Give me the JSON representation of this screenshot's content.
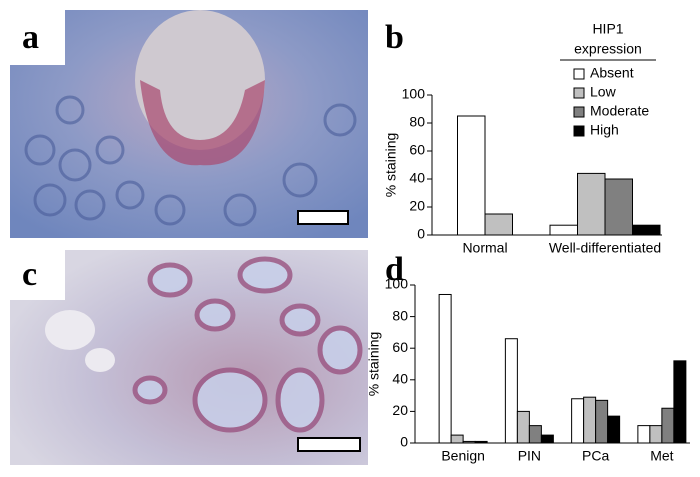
{
  "panels": [
    {
      "label": "a"
    },
    {
      "label": "c"
    }
  ],
  "chart_data": [
    {
      "type": "bar",
      "panel_label": "b",
      "ylabel": "% staining",
      "legend_title": [
        "HIP1",
        "expression"
      ],
      "categories": [
        "Normal",
        "Well-differentiated"
      ],
      "series": [
        {
          "name": "Absent",
          "color": "#ffffff",
          "values": [
            85,
            7
          ]
        },
        {
          "name": "Low",
          "color": "#c0c0c0",
          "values": [
            15,
            44
          ]
        },
        {
          "name": "Moderate",
          "color": "#808080",
          "values": [
            null,
            40
          ]
        },
        {
          "name": "High",
          "color": "#000000",
          "values": [
            null,
            7
          ]
        }
      ],
      "ylim": [
        0,
        100
      ],
      "yticks": [
        0,
        20,
        40,
        60,
        80,
        100
      ]
    },
    {
      "type": "bar",
      "panel_label": "d",
      "ylabel": "% staining",
      "categories": [
        "Benign",
        "PIN",
        "PCa",
        "Met"
      ],
      "series": [
        {
          "color": "#ffffff",
          "values": [
            94,
            66,
            28,
            11
          ]
        },
        {
          "color": "#c0c0c0",
          "values": [
            5,
            20,
            29,
            11
          ]
        },
        {
          "color": "#808080",
          "values": [
            1,
            11,
            27,
            22
          ]
        },
        {
          "color": "#000000",
          "values": [
            1,
            5,
            17,
            52
          ]
        }
      ],
      "ylim": [
        0,
        100
      ],
      "yticks": [
        0,
        20,
        40,
        60,
        80,
        100
      ]
    }
  ]
}
